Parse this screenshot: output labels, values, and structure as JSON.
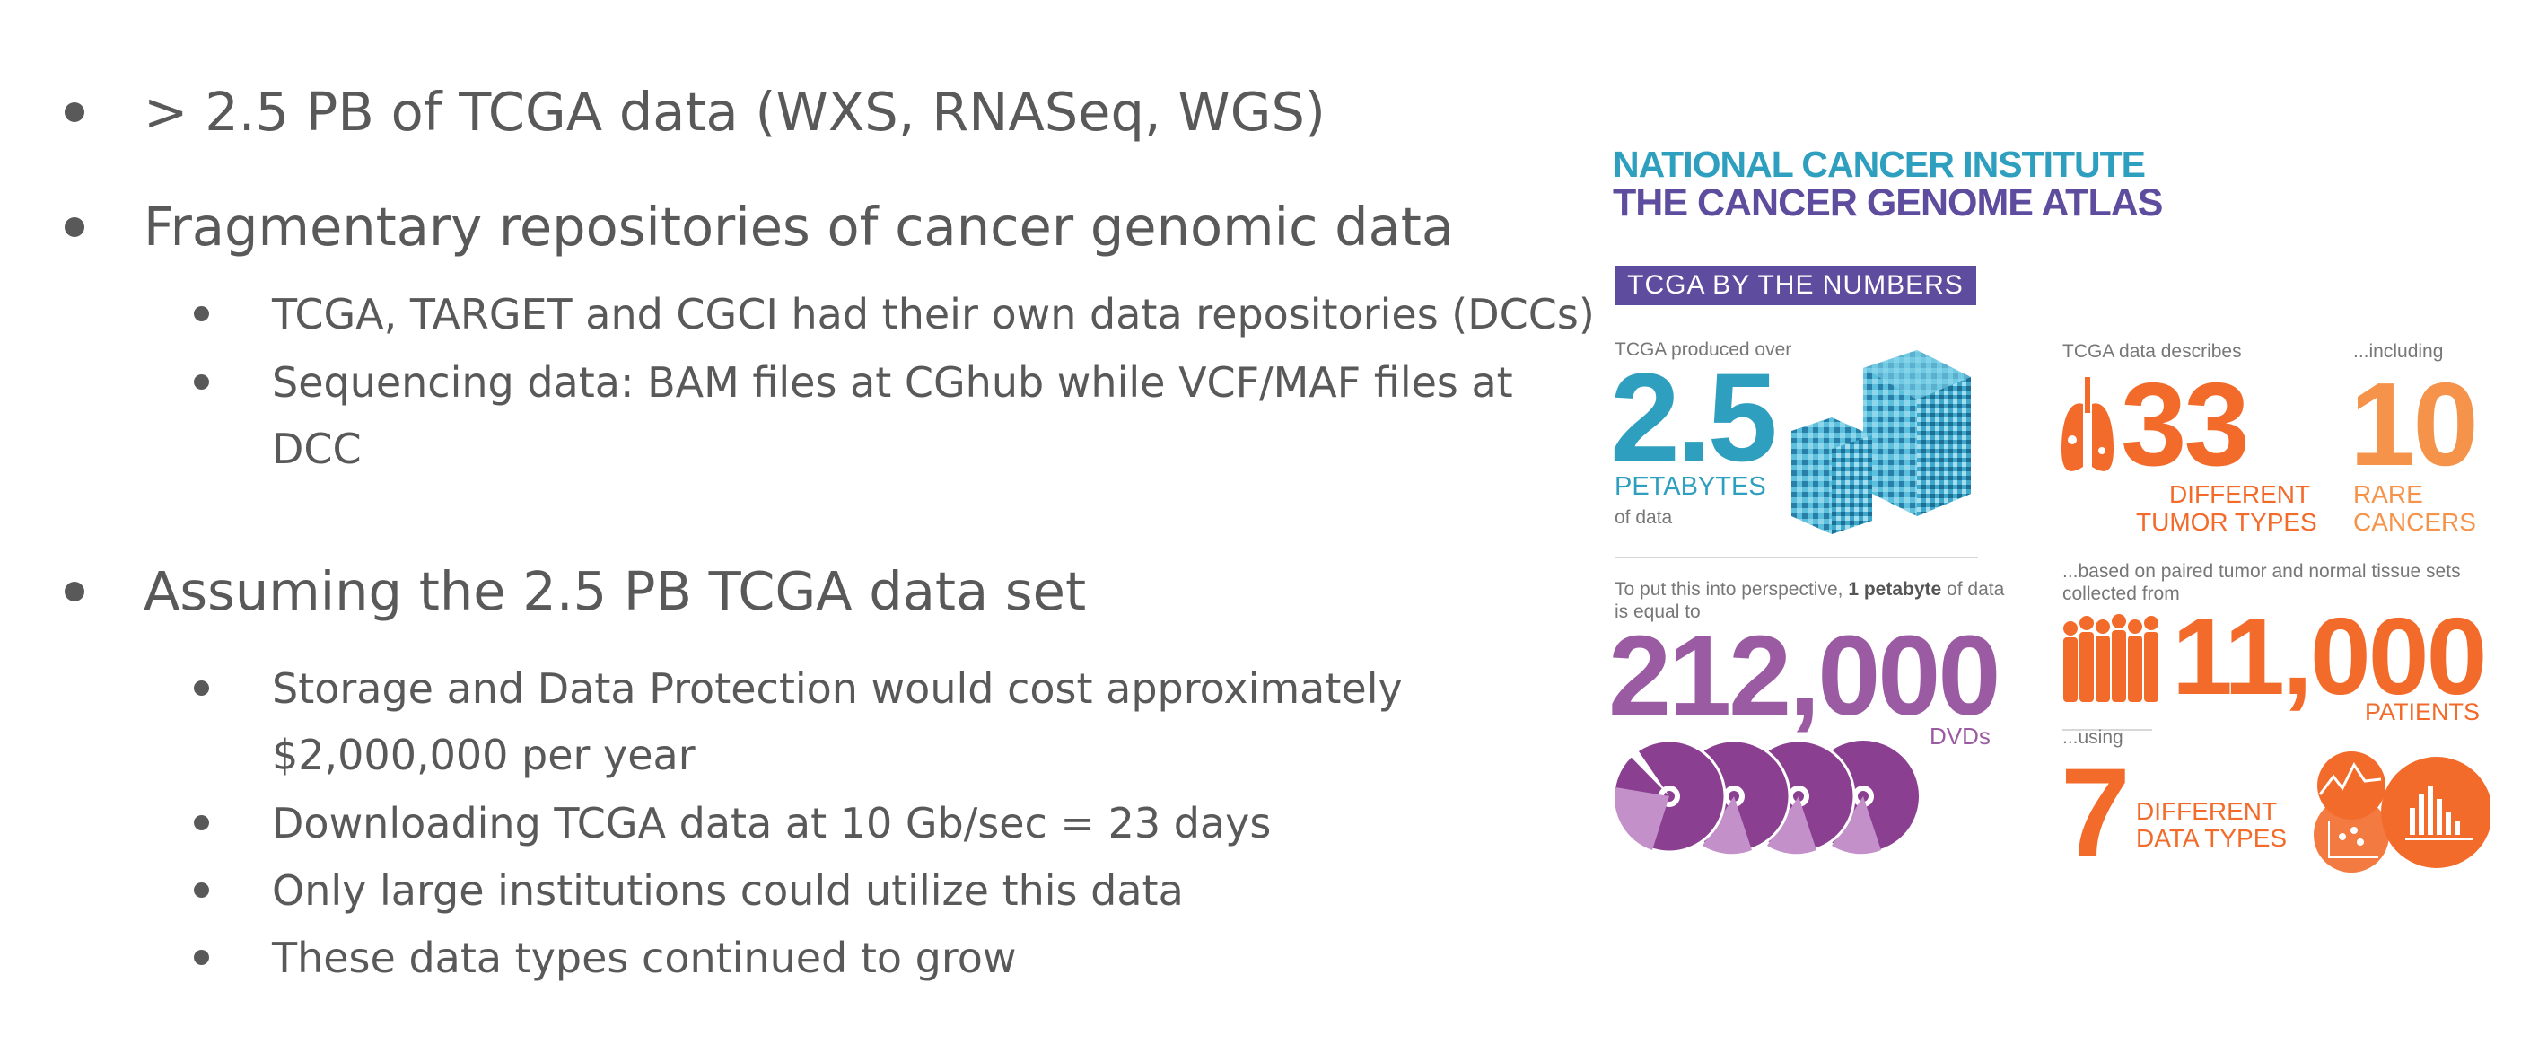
{
  "bullets": {
    "b1": "> 2.5 PB of TCGA data (WXS, RNASeq, WGS)",
    "b2": "Fragmentary repositories of cancer genomic data",
    "b2_1": "TCGA, TARGET and CGCI had their own data repositories (DCCs)",
    "b2_2_line1": "Sequencing data: BAM files at CGhub while VCF/MAF files at",
    "b2_2_line2": "DCC",
    "b3": "Assuming the 2.5 PB TCGA data set",
    "b3_1_line1": "Storage and Data Protection would cost approximately",
    "b3_1_line2": "$2,000,000 per year",
    "b3_2": "Downloading TCGA data at 10 Gb/sec = 23 days",
    "b3_3": "Only large institutions could utilize this data",
    "b3_4": "These data types continued to grow"
  },
  "infographic": {
    "header_line1": "NATIONAL CANCER INSTITUTE",
    "header_line2": "THE CANCER GENOME ATLAS",
    "banner": "TCGA BY THE NUMBERS",
    "produced_over": "TCGA produced over",
    "petabytes_value": "2.5",
    "petabytes_label": "PETABYTES",
    "of_data": "of data",
    "describes": "TCGA data describes",
    "tumor_types_value": "33",
    "tumor_types_label1": "DIFFERENT",
    "tumor_types_label2": "TUMOR TYPES",
    "including": "...including",
    "rare_value": "10",
    "rare_label1": "RARE",
    "rare_label2": "CANCERS",
    "perspective_line1_pre": "To put this into perspective,",
    "perspective_bold": "1 petabyte",
    "perspective_line1_post": "of data",
    "perspective_line2": "is equal to",
    "dvds_value": "212,000",
    "dvds_label": "DVDs",
    "based_on_line1": "...based on paired tumor and normal tissue sets",
    "based_on_line2": "collected from",
    "patients_value": "11,000",
    "patients_label": "PATIENTS",
    "using": "...using",
    "data_types_value": "7",
    "data_types_label1": "DIFFERENT",
    "data_types_label2": "DATA TYPES",
    "colors": {
      "blue": "#2e9fbe",
      "purple": "#9a5ba2",
      "orange": "#f26b2b",
      "banner": "#5e4d9e"
    }
  }
}
